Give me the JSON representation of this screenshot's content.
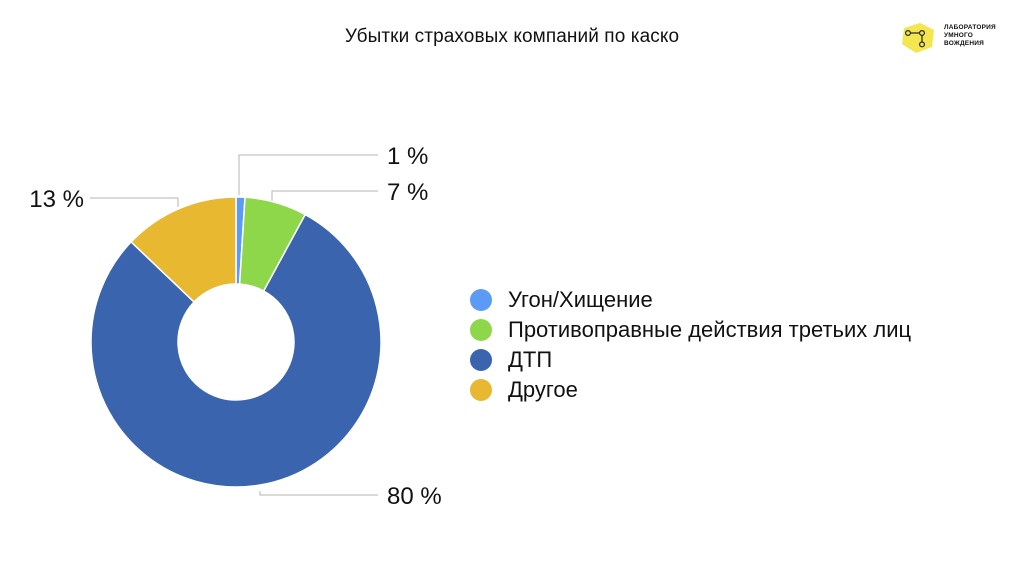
{
  "title": "Убытки страховых компаний по каско",
  "logo": {
    "lines": [
      "ЛАБОРАТОРИЯ",
      "УМНОГО",
      "ВОЖДЕНИЯ"
    ],
    "color": "#F4E64E"
  },
  "chart_data": {
    "type": "pie",
    "variant": "donut",
    "title": "Убытки страховых компаний по каско",
    "legend_position": "right",
    "series": [
      {
        "name": "Угон/Хищение",
        "value": 1,
        "label": "1 %",
        "color": "#5B9BF5"
      },
      {
        "name": "Противоправные действия третьих лиц",
        "value": 7,
        "label": "7 %",
        "color": "#8ED64A"
      },
      {
        "name": "ДТП",
        "value": 80,
        "label": "80 %",
        "color": "#3A65AE"
      },
      {
        "name": "Другое",
        "value": 13,
        "label": "13 %",
        "color": "#E8B830"
      }
    ]
  }
}
